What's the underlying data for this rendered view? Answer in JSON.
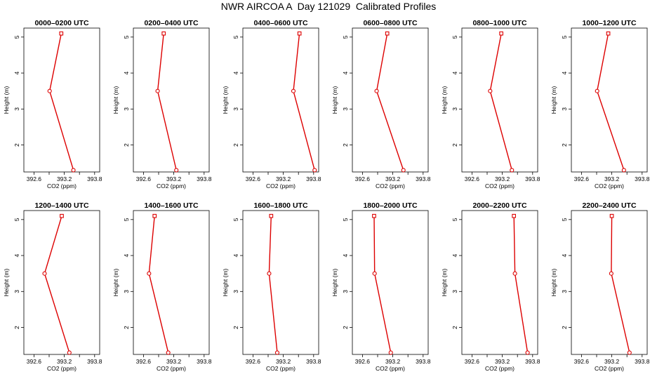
{
  "title": "NWR AIRCOA A  Day 121029  Calibrated Profiles",
  "colors": {
    "series": "#dd0000",
    "axis": "#000000"
  },
  "chart_data": [
    {
      "type": "line",
      "title": "0000–0200 UTC",
      "xlabel": "CO2 (ppm)",
      "ylabel": "Height (m)",
      "xlim": [
        392.4,
        393.9
      ],
      "ylim": [
        1.25,
        5.25
      ],
      "xticks": [
        "392.6",
        "393.2",
        "393.8"
      ],
      "yticks": [
        "2",
        "3",
        "4",
        "5"
      ],
      "x": [
        393.14,
        392.91,
        393.38
      ],
      "y": [
        5.1,
        3.5,
        1.3
      ]
    },
    {
      "type": "line",
      "title": "0200–0400 UTC",
      "xlabel": "CO2 (ppm)",
      "ylabel": "Height (m)",
      "xlim": [
        392.4,
        393.9
      ],
      "ylim": [
        1.25,
        5.25
      ],
      "xticks": [
        "392.6",
        "393.2",
        "393.8"
      ],
      "yticks": [
        "2",
        "3",
        "4",
        "5"
      ],
      "x": [
        393.0,
        392.88,
        393.25
      ],
      "y": [
        5.1,
        3.5,
        1.3
      ]
    },
    {
      "type": "line",
      "title": "0400–0600 UTC",
      "xlabel": "CO2 (ppm)",
      "ylabel": "Height (m)",
      "xlim": [
        392.4,
        393.9
      ],
      "ylim": [
        1.25,
        5.25
      ],
      "xticks": [
        "392.6",
        "393.2",
        "393.8"
      ],
      "yticks": [
        "2",
        "3",
        "4",
        "5"
      ],
      "x": [
        393.52,
        393.4,
        393.82
      ],
      "y": [
        5.1,
        3.5,
        1.3
      ]
    },
    {
      "type": "line",
      "title": "0600–0800 UTC",
      "xlabel": "CO2 (ppm)",
      "ylabel": "Height (m)",
      "xlim": [
        392.4,
        393.9
      ],
      "ylim": [
        1.25,
        5.25
      ],
      "xticks": [
        "392.6",
        "393.2",
        "393.8"
      ],
      "yticks": [
        "2",
        "3",
        "4",
        "5"
      ],
      "x": [
        393.09,
        392.88,
        393.41
      ],
      "y": [
        5.1,
        3.5,
        1.3
      ]
    },
    {
      "type": "line",
      "title": "0800–1000 UTC",
      "xlabel": "CO2 (ppm)",
      "ylabel": "Height (m)",
      "xlim": [
        392.4,
        393.9
      ],
      "ylim": [
        1.25,
        5.25
      ],
      "xticks": [
        "392.6",
        "393.2",
        "393.8"
      ],
      "yticks": [
        "2",
        "3",
        "4",
        "5"
      ],
      "x": [
        393.18,
        392.96,
        393.39
      ],
      "y": [
        5.1,
        3.5,
        1.3
      ]
    },
    {
      "type": "line",
      "title": "1000–1200 UTC",
      "xlabel": "CO2 (ppm)",
      "ylabel": "Height (m)",
      "xlim": [
        392.4,
        393.9
      ],
      "ylim": [
        1.25,
        5.25
      ],
      "xticks": [
        "392.6",
        "393.2",
        "393.8"
      ],
      "yticks": [
        "2",
        "3",
        "4",
        "5"
      ],
      "x": [
        393.13,
        392.91,
        393.44
      ],
      "y": [
        5.1,
        3.5,
        1.3
      ]
    },
    {
      "type": "line",
      "title": "1200–1400 UTC",
      "xlabel": "CO2 (ppm)",
      "ylabel": "Height (m)",
      "xlim": [
        392.4,
        393.9
      ],
      "ylim": [
        1.25,
        5.25
      ],
      "xticks": [
        "392.6",
        "393.2",
        "393.8"
      ],
      "yticks": [
        "2",
        "3",
        "4",
        "5"
      ],
      "x": [
        393.15,
        392.81,
        393.3
      ],
      "y": [
        5.1,
        3.5,
        1.3
      ]
    },
    {
      "type": "line",
      "title": "1400–1600 UTC",
      "xlabel": "CO2 (ppm)",
      "ylabel": "Height (m)",
      "xlim": [
        392.4,
        393.9
      ],
      "ylim": [
        1.25,
        5.25
      ],
      "xticks": [
        "392.6",
        "393.2",
        "393.8"
      ],
      "yticks": [
        "2",
        "3",
        "4",
        "5"
      ],
      "x": [
        392.82,
        392.71,
        393.09
      ],
      "y": [
        5.1,
        3.5,
        1.3
      ]
    },
    {
      "type": "line",
      "title": "1600–1800 UTC",
      "xlabel": "CO2 (ppm)",
      "ylabel": "Height (m)",
      "xlim": [
        392.4,
        393.9
      ],
      "ylim": [
        1.25,
        5.25
      ],
      "xticks": [
        "392.6",
        "393.2",
        "393.8"
      ],
      "yticks": [
        "2",
        "3",
        "4",
        "5"
      ],
      "x": [
        392.96,
        392.92,
        393.08
      ],
      "y": [
        5.1,
        3.5,
        1.3
      ]
    },
    {
      "type": "line",
      "title": "1800–2000 UTC",
      "xlabel": "CO2 (ppm)",
      "ylabel": "Height (m)",
      "xlim": [
        392.4,
        393.9
      ],
      "ylim": [
        1.25,
        5.25
      ],
      "xticks": [
        "392.6",
        "393.2",
        "393.8"
      ],
      "yticks": [
        "2",
        "3",
        "4",
        "5"
      ],
      "x": [
        392.83,
        392.84,
        393.16
      ],
      "y": [
        5.1,
        3.5,
        1.3
      ]
    },
    {
      "type": "line",
      "title": "2000–2200 UTC",
      "xlabel": "CO2 (ppm)",
      "ylabel": "Height (m)",
      "xlim": [
        392.4,
        393.9
      ],
      "ylim": [
        1.25,
        5.25
      ],
      "xticks": [
        "392.6",
        "393.2",
        "393.8"
      ],
      "yticks": [
        "2",
        "3",
        "4",
        "5"
      ],
      "x": [
        393.43,
        393.45,
        393.7
      ],
      "y": [
        5.1,
        3.5,
        1.3
      ]
    },
    {
      "type": "line",
      "title": "2200–2400 UTC",
      "xlabel": "CO2 (ppm)",
      "ylabel": "Height (m)",
      "xlim": [
        392.4,
        393.9
      ],
      "ylim": [
        1.25,
        5.25
      ],
      "xticks": [
        "392.6",
        "393.2",
        "393.8"
      ],
      "yticks": [
        "2",
        "3",
        "4",
        "5"
      ],
      "x": [
        393.2,
        393.19,
        393.55
      ],
      "y": [
        5.1,
        3.5,
        1.3
      ]
    }
  ]
}
